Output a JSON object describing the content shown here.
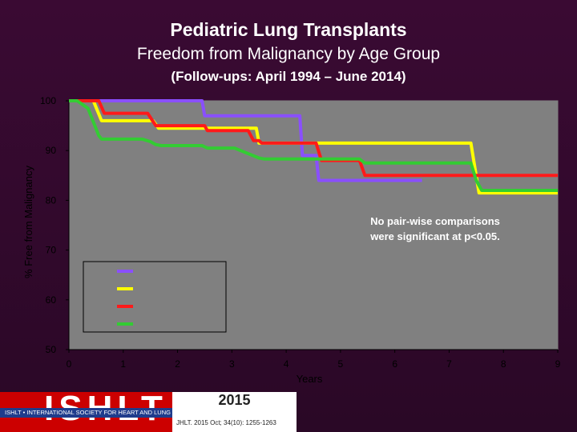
{
  "header": {
    "title": "Pediatric Lung Transplants",
    "subtitle": "Freedom from Malignancy by Age Group",
    "followup": "(Follow-ups: April 1994 – June 2014)"
  },
  "chart_data": {
    "type": "line",
    "title": "Freedom from Malignancy by Age Group",
    "xlabel": "Years",
    "ylabel": "% Free from Malignancy",
    "xlim": [
      0,
      9
    ],
    "ylim": [
      50,
      100
    ],
    "x_ticks": [
      "0",
      "1",
      "2",
      "3",
      "4",
      "5",
      "6",
      "7",
      "8",
      "9"
    ],
    "y_ticks": [
      "50",
      "60",
      "70",
      "80",
      "90",
      "100"
    ],
    "step": true,
    "annotation": "No pair-wise comparisons were significant at p<0.05.",
    "series": [
      {
        "color": "#8a4fff",
        "x": [
          0,
          2.45,
          2.5,
          4.25,
          4.3,
          4.55,
          4.6,
          6.5
        ],
        "y": [
          100,
          100,
          97,
          97,
          89,
          89,
          84,
          84
        ]
      },
      {
        "color": "#ffff00",
        "x": [
          0,
          0.45,
          0.6,
          1.55,
          1.65,
          3.45,
          3.5,
          7.4,
          7.55,
          9
        ],
        "y": [
          100,
          100,
          96,
          96,
          94.5,
          94.5,
          91.5,
          91.5,
          81.5,
          81.5
        ]
      },
      {
        "color": "#ff1a1a",
        "x": [
          0,
          0.55,
          0.65,
          1.45,
          1.6,
          2.5,
          2.55,
          3.3,
          3.4,
          3.5,
          3.55,
          4.55,
          4.65,
          5.35,
          5.45,
          7.45,
          7.55,
          9
        ],
        "y": [
          100,
          100,
          97.5,
          97.5,
          95,
          95,
          94,
          94,
          92,
          92,
          91.5,
          91.5,
          88,
          88,
          85,
          85,
          85,
          85
        ]
      },
      {
        "color": "#33cc33",
        "x": [
          0,
          0.15,
          0.35,
          0.55,
          0.6,
          1.35,
          1.5,
          1.6,
          1.7,
          2.45,
          2.55,
          3.05,
          3.5,
          3.6,
          5.35,
          5.45,
          7.4,
          7.5,
          7.6,
          9
        ],
        "y": [
          100,
          100,
          98.5,
          93,
          92.3,
          92.3,
          91.8,
          91.2,
          91,
          91,
          90.5,
          90.5,
          88.5,
          88.3,
          88.3,
          87.5,
          87.5,
          84,
          82,
          82
        ]
      }
    ]
  },
  "footer": {
    "logo": "ISHLT",
    "org": "ISHLT • INTERNATIONAL SOCIETY FOR HEART AND LUNG TRANSPLANTATION",
    "year": "2015",
    "citation": "JHLT. 2015 Oct; 34(10): 1255-1263"
  }
}
